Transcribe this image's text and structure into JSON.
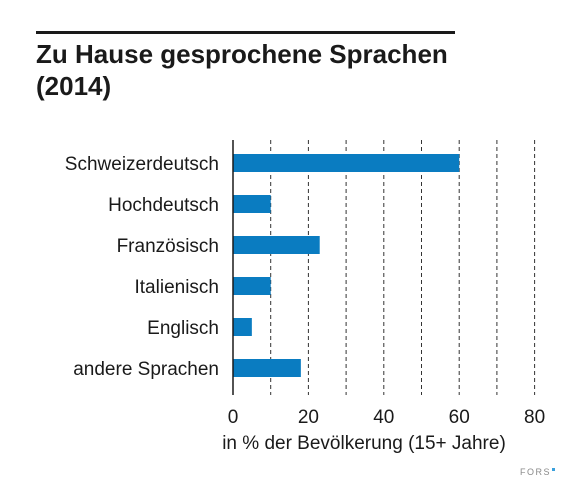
{
  "chart_data": {
    "type": "bar",
    "orientation": "horizontal",
    "title": "Zu Hause gesprochene Sprachen (2014)",
    "title_lines": [
      "Zu Hause gesprochene Sprachen",
      "(2014)"
    ],
    "categories": [
      "Schweizerdeutsch",
      "Hochdeutsch",
      "Französisch",
      "Italienisch",
      "Englisch",
      "andere Sprachen"
    ],
    "values": [
      60,
      10,
      23,
      10,
      5,
      18
    ],
    "xlabel": "in % der Bevölkerung (15+ Jahre)",
    "ylabel": "",
    "xlim": [
      0,
      80
    ],
    "xticks": [
      0,
      20,
      40,
      60,
      80
    ],
    "gridlines": [
      10,
      20,
      30,
      40,
      50,
      60,
      70,
      80
    ],
    "grid": "dashed vertical",
    "bar_color": "#0a7cc1",
    "text_color": "#1a1a1a"
  },
  "brand": {
    "label": "FORS",
    "accent": "#3aa0dc"
  }
}
